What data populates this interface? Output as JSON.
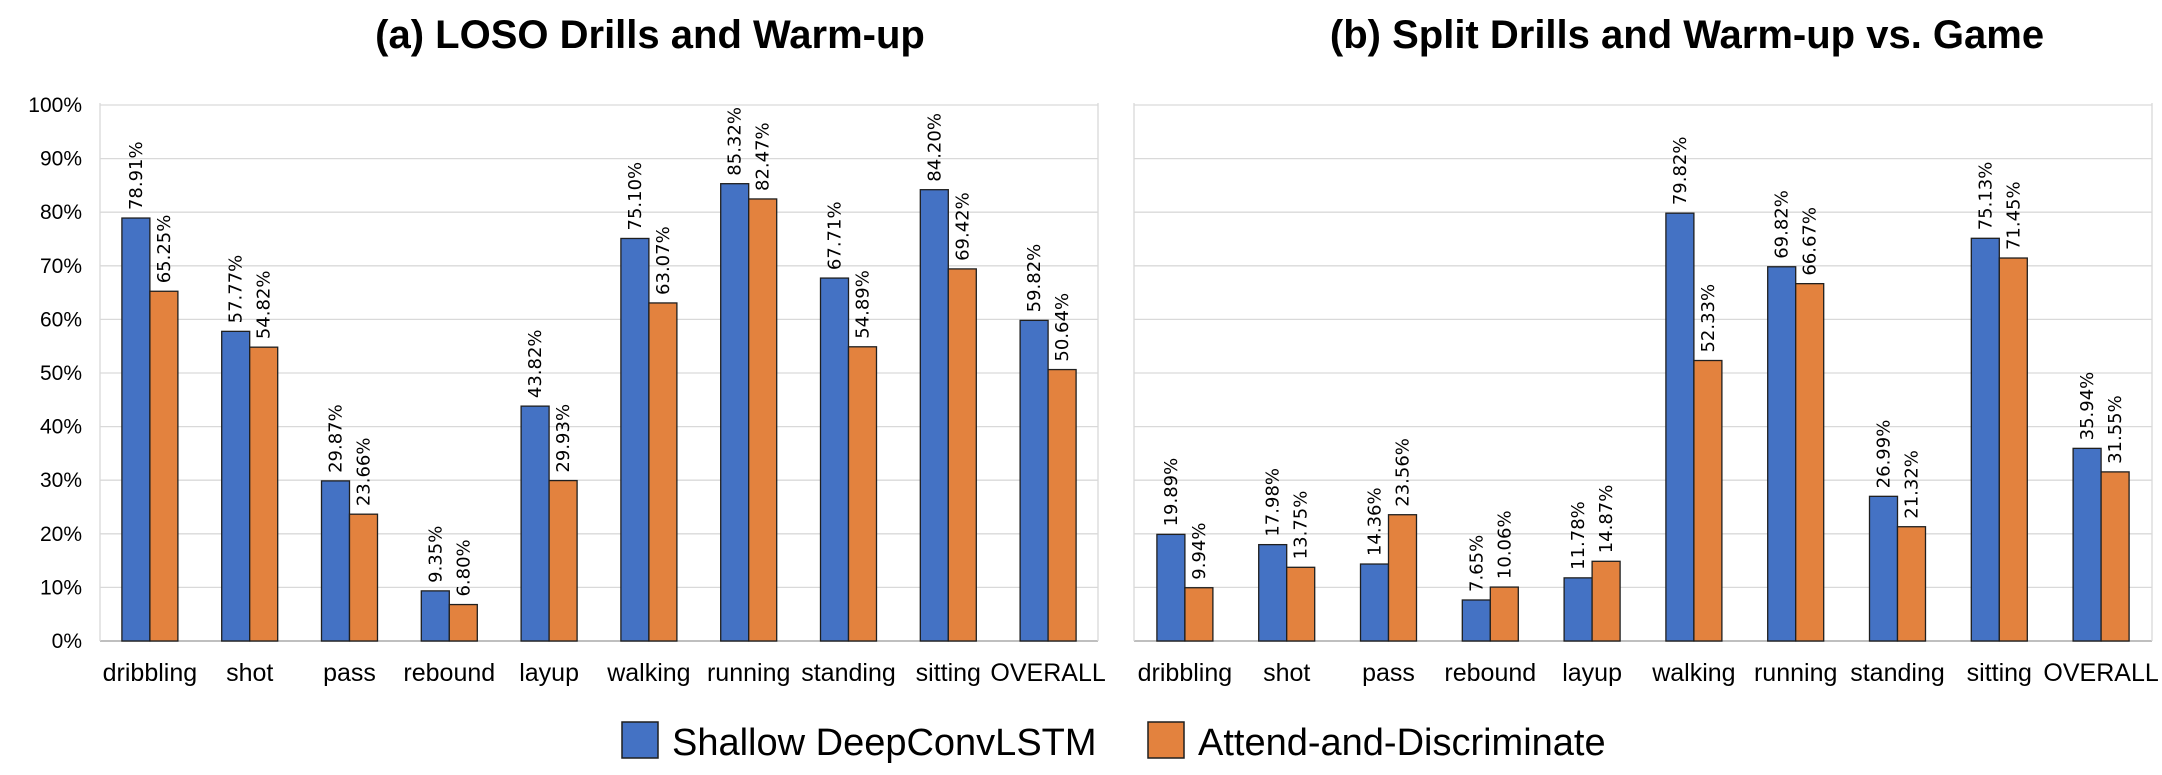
{
  "colors": {
    "series1": "#4472C4",
    "series2": "#E3823E",
    "grid": "#D9D9D9",
    "axis": "#BFBFBF",
    "bar_edge": "#1F1F1F"
  },
  "legend": [
    {
      "name": "Shallow DeepConvLSTM",
      "color": "#4472C4"
    },
    {
      "name": "Attend-and-Discriminate",
      "color": "#E3823E"
    }
  ],
  "chart_data": [
    {
      "type": "bar",
      "title": "(a) LOSO Drills and Warm-up",
      "categories": [
        "dribbling",
        "shot",
        "pass",
        "rebound",
        "layup",
        "walking",
        "running",
        "standing",
        "sitting",
        "OVERALL"
      ],
      "series": [
        {
          "name": "Shallow DeepConvLSTM",
          "values": [
            78.91,
            57.77,
            29.87,
            9.35,
            43.82,
            75.1,
            85.32,
            67.71,
            84.2,
            59.82
          ],
          "labels": [
            "78.91%",
            "57.77%",
            "29.87%",
            "9.35%",
            "43.82%",
            "75.10%",
            "85.32%",
            "67.71%",
            "84.20%",
            "59.82%"
          ]
        },
        {
          "name": "Attend-and-Discriminate",
          "values": [
            65.25,
            54.82,
            23.66,
            6.8,
            29.93,
            63.07,
            82.47,
            54.89,
            69.42,
            50.64
          ],
          "labels": [
            "65.25%",
            "54.82%",
            "23.66%",
            "6.80%",
            "29.93%",
            "63.07%",
            "82.47%",
            "54.89%",
            "69.42%",
            "50.64%"
          ]
        }
      ],
      "ylim": [
        0,
        100
      ],
      "yticks": [
        "0%",
        "10%",
        "20%",
        "30%",
        "40%",
        "50%",
        "60%",
        "70%",
        "80%",
        "90%",
        "100%"
      ],
      "show_y_axis_labels": true,
      "grid": true
    },
    {
      "type": "bar",
      "title": "(b) Split Drills and Warm-up vs. Game",
      "categories": [
        "dribbling",
        "shot",
        "pass",
        "rebound",
        "layup",
        "walking",
        "running",
        "standing",
        "sitting",
        "OVERALL"
      ],
      "series": [
        {
          "name": "Shallow DeepConvLSTM",
          "values": [
            19.89,
            17.98,
            14.36,
            7.65,
            11.78,
            79.82,
            69.82,
            26.99,
            75.13,
            35.94
          ],
          "labels": [
            "19.89%",
            "17.98%",
            "14.36%",
            "7.65%",
            "11.78%",
            "79.82%",
            "69.82%",
            "26.99%",
            "75.13%",
            "35.94%"
          ]
        },
        {
          "name": "Attend-and-Discriminate",
          "values": [
            9.94,
            13.75,
            23.56,
            10.06,
            14.87,
            52.33,
            66.67,
            21.32,
            71.45,
            31.55
          ],
          "labels": [
            "9.94%",
            "13.75%",
            "23.56%",
            "10.06%",
            "14.87%",
            "52.33%",
            "66.67%",
            "21.32%",
            "71.45%",
            "31.55%"
          ]
        }
      ],
      "ylim": [
        0,
        100
      ],
      "yticks": [],
      "show_y_axis_labels": false,
      "grid": true
    }
  ]
}
